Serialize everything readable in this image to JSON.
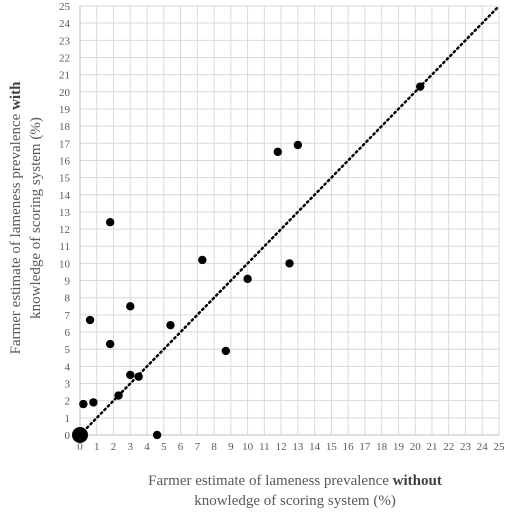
{
  "chart_data": {
    "type": "scatter",
    "title": "",
    "xlabel": {
      "line1_prefix": "Farmer estimate of lameness prevalence ",
      "line1_bold": "without",
      "line2": "knowledge of scoring system (%)"
    },
    "ylabel": {
      "line1_prefix": "Farmer estimate of lameness prevalence ",
      "line1_bold": "with",
      "line2": "knowledge of scoring system (%)"
    },
    "xlim": [
      0,
      25
    ],
    "ylim": [
      0,
      25
    ],
    "ticks": [
      "0",
      "1",
      "2",
      "3",
      "4",
      "5",
      "6",
      "7",
      "8",
      "9",
      "10",
      "11",
      "12",
      "13",
      "14",
      "15",
      "16",
      "17",
      "18",
      "19",
      "20",
      "21",
      "22",
      "23",
      "24",
      "25"
    ],
    "grid": true,
    "reference_line": {
      "type": "dotted",
      "from": [
        0,
        0
      ],
      "to": [
        25,
        25
      ]
    },
    "marker_color": "#000000",
    "grid_color": "#d9d9d9",
    "points": [
      {
        "x": 0,
        "y": 0,
        "large": true
      },
      {
        "x": 0.2,
        "y": 1.8
      },
      {
        "x": 0.8,
        "y": 1.9
      },
      {
        "x": 0.6,
        "y": 6.7
      },
      {
        "x": 1.8,
        "y": 5.3
      },
      {
        "x": 1.8,
        "y": 12.4
      },
      {
        "x": 2.3,
        "y": 2.3
      },
      {
        "x": 3.0,
        "y": 7.5
      },
      {
        "x": 3.0,
        "y": 3.5
      },
      {
        "x": 3.5,
        "y": 3.4
      },
      {
        "x": 4.6,
        "y": 0.0
      },
      {
        "x": 5.4,
        "y": 6.4
      },
      {
        "x": 7.3,
        "y": 10.2
      },
      {
        "x": 8.7,
        "y": 4.9
      },
      {
        "x": 10.0,
        "y": 9.1
      },
      {
        "x": 11.8,
        "y": 16.5
      },
      {
        "x": 12.5,
        "y": 10.0
      },
      {
        "x": 13.0,
        "y": 16.9
      },
      {
        "x": 20.3,
        "y": 20.3
      }
    ]
  }
}
